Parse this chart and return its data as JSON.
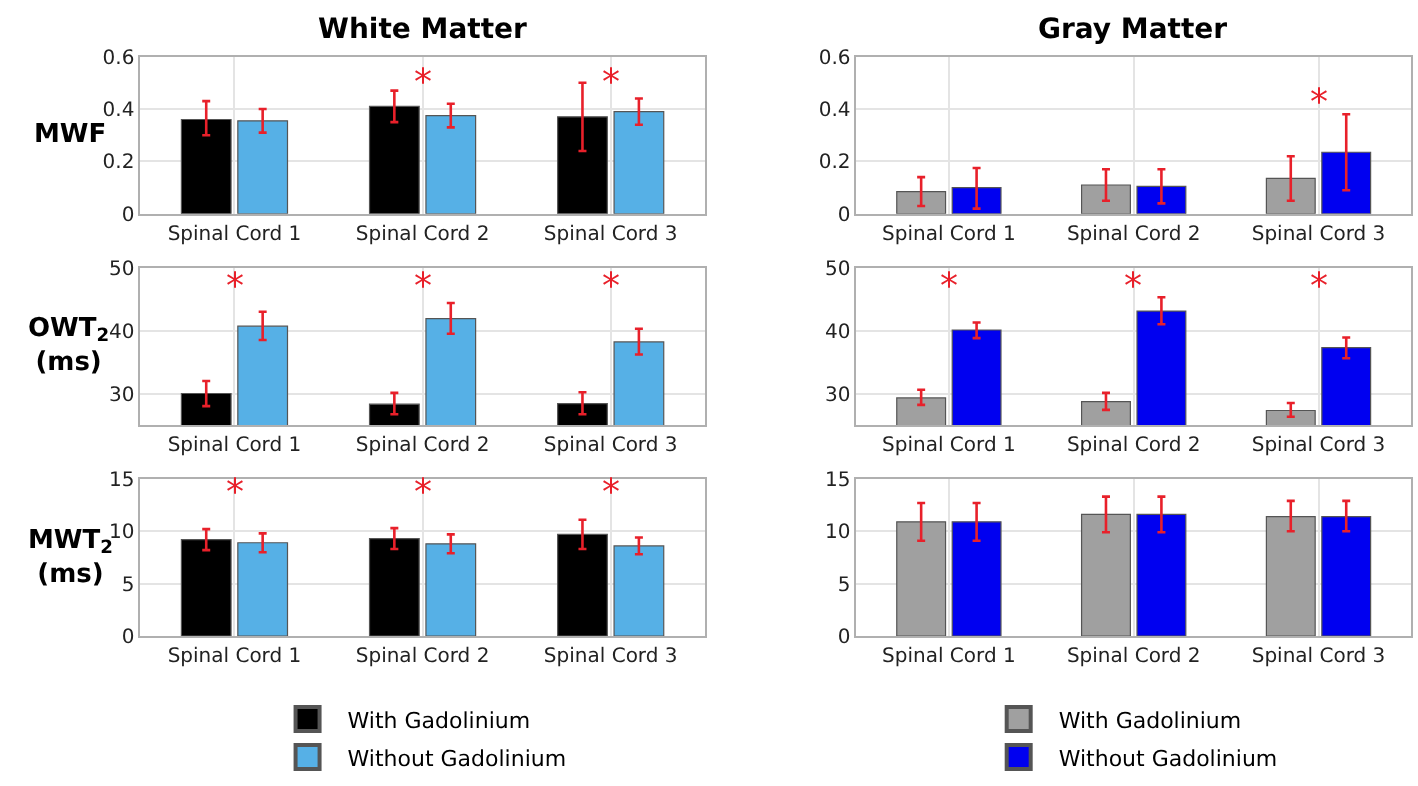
{
  "chart_data": [
    {
      "type": "bar",
      "title": "White Matter",
      "ylabel": "MWF",
      "categories": [
        "Spinal Cord 1",
        "Spinal Cord 2",
        "Spinal Cord 3"
      ],
      "ylim": [
        0,
        0.6
      ],
      "yticks": [
        0,
        0.2,
        0.4,
        0.6
      ],
      "grid": true,
      "series": [
        {
          "color": "#000000",
          "values": [
            0.36,
            0.41,
            0.37
          ],
          "errors": [
            [
              0.3,
              0.43
            ],
            [
              0.35,
              0.47
            ],
            [
              0.24,
              0.5
            ]
          ]
        },
        {
          "color": "#56b0e6",
          "values": [
            0.355,
            0.375,
            0.39
          ],
          "errors": [
            [
              0.31,
              0.4
            ],
            [
              0.33,
              0.42
            ],
            [
              0.34,
              0.44
            ]
          ]
        }
      ],
      "annotations": [
        "*",
        "*"
      ]
    },
    {
      "type": "bar",
      "title": "Gray Matter",
      "categories": [
        "Spinal Cord 1",
        "Spinal Cord 2",
        "Spinal Cord 3"
      ],
      "ylim": [
        0,
        0.6
      ],
      "yticks": [
        0,
        0.2,
        0.4,
        0.6
      ],
      "grid": true,
      "series": [
        {
          "color": "#a0a0a0",
          "values": [
            0.085,
            0.11,
            0.135
          ],
          "errors": [
            [
              0.03,
              0.14
            ],
            [
              0.05,
              0.17
            ],
            [
              0.05,
              0.22
            ]
          ]
        },
        {
          "color": "#0000f0",
          "values": [
            0.1,
            0.105,
            0.235
          ],
          "errors": [
            [
              0.02,
              0.175
            ],
            [
              0.04,
              0.17
            ],
            [
              0.09,
              0.38
            ]
          ]
        }
      ],
      "annotations": [
        "*"
      ]
    },
    {
      "type": "bar",
      "ylabel": "OWT$_{2}$\n(ms)",
      "categories": [
        "Spinal Cord 1",
        "Spinal Cord 2",
        "Spinal Cord 3"
      ],
      "ylim": [
        25,
        50
      ],
      "yticks": [
        30,
        40,
        50
      ],
      "grid": true,
      "series": [
        {
          "color": "#000000",
          "values": [
            30,
            28.3,
            28.4
          ],
          "errors": [
            [
              28,
              32
            ],
            [
              26.7,
              30.1
            ],
            [
              26.7,
              30.2
            ]
          ]
        },
        {
          "color": "#56b0e6",
          "values": [
            40.7,
            41.9,
            38.2
          ],
          "errors": [
            [
              38.5,
              43
            ],
            [
              39.5,
              44.4
            ],
            [
              36.2,
              40.3
            ]
          ]
        }
      ],
      "annotations": [
        "*",
        "*",
        "*"
      ]
    },
    {
      "type": "bar",
      "categories": [
        "Spinal Cord 1",
        "Spinal Cord 2",
        "Spinal Cord 3"
      ],
      "ylim": [
        25,
        50
      ],
      "yticks": [
        30,
        40,
        50
      ],
      "grid": true,
      "series": [
        {
          "color": "#a0a0a0",
          "values": [
            29.3,
            28.7,
            27.3
          ],
          "errors": [
            [
              28.2,
              30.6
            ],
            [
              27.4,
              30.1
            ],
            [
              26.3,
              28.5
            ]
          ]
        },
        {
          "color": "#0000f0",
          "values": [
            40.1,
            43.1,
            37.3
          ],
          "errors": [
            [
              38.8,
              41.3
            ],
            [
              41,
              45.3
            ],
            [
              35.6,
              38.9
            ]
          ]
        }
      ],
      "annotations": [
        "*",
        "*",
        "*"
      ]
    },
    {
      "type": "bar",
      "ylabel": "MWT$_{2}$\n(ms)",
      "categories": [
        "Spinal Cord 1",
        "Spinal Cord 2",
        "Spinal Cord 3"
      ],
      "ylim": [
        0,
        15
      ],
      "yticks": [
        0,
        5,
        10,
        15
      ],
      "grid": true,
      "legend": "bottom",
      "series": [
        {
          "name": "With Gadolinium",
          "color": "#000000",
          "values": [
            9.2,
            9.3,
            9.7
          ],
          "errors": [
            [
              8.2,
              10.2
            ],
            [
              8.3,
              10.3
            ],
            [
              8.3,
              11.1
            ]
          ]
        },
        {
          "name": "Without Gadolinium",
          "color": "#56b0e6",
          "values": [
            8.9,
            8.8,
            8.6
          ],
          "errors": [
            [
              8.0,
              9.8
            ],
            [
              7.9,
              9.7
            ],
            [
              7.8,
              9.4
            ]
          ]
        }
      ],
      "annotations": [
        "*",
        "*",
        "*"
      ]
    },
    {
      "type": "bar",
      "categories": [
        "Spinal Cord 1",
        "Spinal Cord 2",
        "Spinal Cord 3"
      ],
      "ylim": [
        0,
        15
      ],
      "yticks": [
        0,
        5,
        10,
        15
      ],
      "grid": true,
      "legend": "bottom",
      "series": [
        {
          "name": "With Gadolinium",
          "color": "#a0a0a0",
          "values": [
            10.9,
            11.6,
            11.4
          ],
          "errors": [
            [
              9.1,
              12.7
            ],
            [
              9.9,
              13.3
            ],
            [
              10.0,
              12.9
            ]
          ]
        },
        {
          "name": "Without Gadolinium",
          "color": "#0000f0",
          "values": [
            10.9,
            11.6,
            11.4
          ],
          "errors": [
            [
              9.1,
              12.7
            ],
            [
              9.9,
              13.3
            ],
            [
              10.0,
              12.9
            ]
          ]
        }
      ]
    }
  ]
}
